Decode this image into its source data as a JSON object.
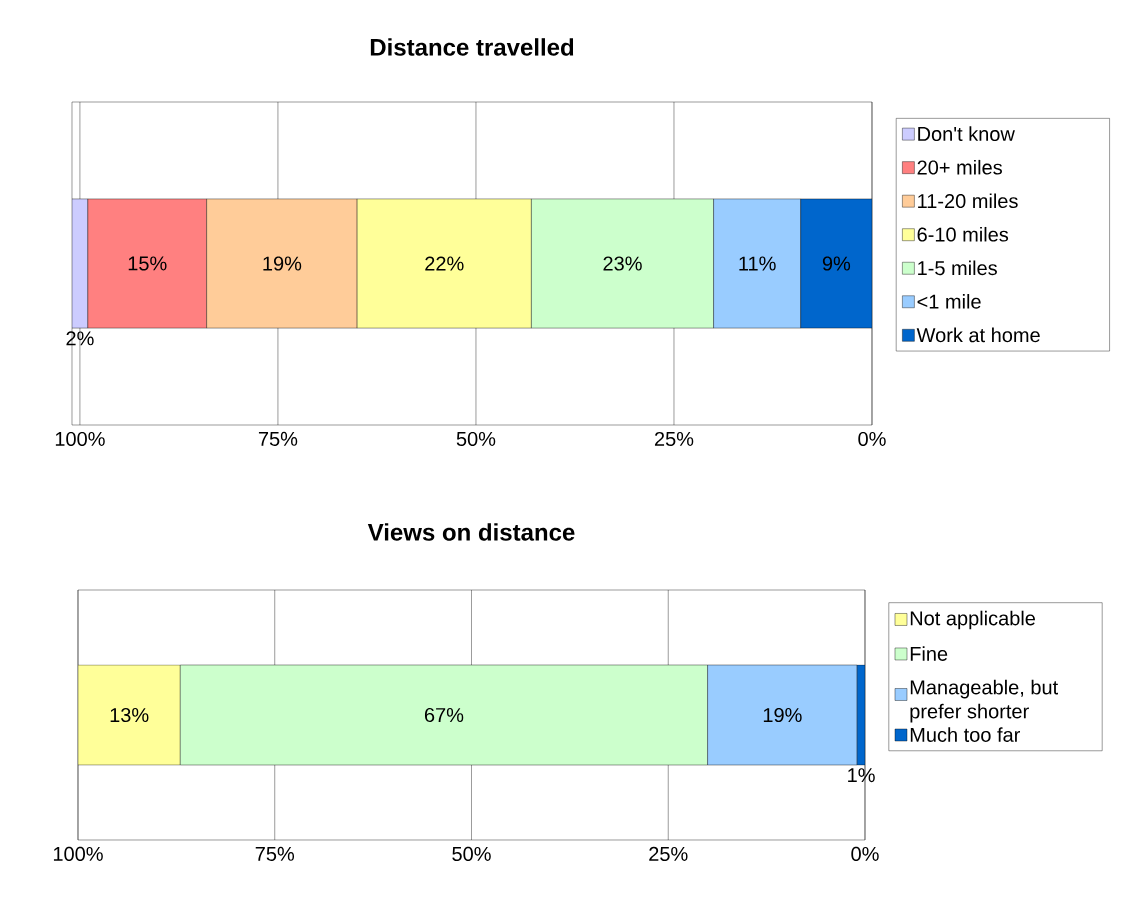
{
  "chart_data": [
    {
      "type": "bar",
      "orientation": "horizontal",
      "stacked": true,
      "title": "Distance travelled",
      "categories": [
        null
      ],
      "xlim": [
        101,
        0
      ],
      "xticks": [
        {
          "value": 100,
          "label": "100%"
        },
        {
          "value": 75,
          "label": "75%"
        },
        {
          "value": 50,
          "label": "50%"
        },
        {
          "value": 25,
          "label": "25%"
        },
        {
          "value": 0,
          "label": "0%"
        }
      ],
      "grid": "x",
      "legend": "right",
      "series": [
        {
          "name": "Work at home",
          "color": "#0066cc",
          "values": [
            9
          ],
          "value_labels": [
            "9%"
          ]
        },
        {
          "name": "<1 mile",
          "color": "#99ccff",
          "values": [
            11
          ],
          "value_labels": [
            "11%"
          ]
        },
        {
          "name": "1-5 miles",
          "color": "#ccffcc",
          "values": [
            23
          ],
          "value_labels": [
            "23%"
          ]
        },
        {
          "name": "6-10 miles",
          "color": "#ffff99",
          "values": [
            22
          ],
          "value_labels": [
            "22%"
          ]
        },
        {
          "name": "11-20 miles",
          "color": "#ffcc99",
          "values": [
            19
          ],
          "value_labels": [
            "19%"
          ]
        },
        {
          "name": "20+ miles",
          "color": "#ff8080",
          "values": [
            15
          ],
          "value_labels": [
            "15%"
          ]
        },
        {
          "name": "Don't know",
          "color": "#ccccff",
          "values": [
            2
          ],
          "value_labels": [
            "2%"
          ]
        }
      ]
    },
    {
      "type": "bar",
      "orientation": "horizontal",
      "stacked": true,
      "title": "Views on distance",
      "categories": [
        null
      ],
      "xlim": [
        100,
        0
      ],
      "xticks": [
        {
          "value": 100,
          "label": "100%"
        },
        {
          "value": 75,
          "label": "75%"
        },
        {
          "value": 50,
          "label": "50%"
        },
        {
          "value": 25,
          "label": "25%"
        },
        {
          "value": 0,
          "label": "0%"
        }
      ],
      "grid": "x",
      "legend": "right",
      "series": [
        {
          "name": "Much too far",
          "color": "#0066cc",
          "values": [
            1
          ],
          "value_labels": [
            "1%"
          ]
        },
        {
          "name": "Manageable, but prefer shorter",
          "color": "#99ccff",
          "values": [
            19
          ],
          "value_labels": [
            "19%"
          ]
        },
        {
          "name": "Fine",
          "color": "#ccffcc",
          "values": [
            67
          ],
          "value_labels": [
            "67%"
          ]
        },
        {
          "name": "Not applicable",
          "color": "#ffff99",
          "values": [
            13
          ],
          "value_labels": [
            "13%"
          ]
        }
      ]
    }
  ]
}
